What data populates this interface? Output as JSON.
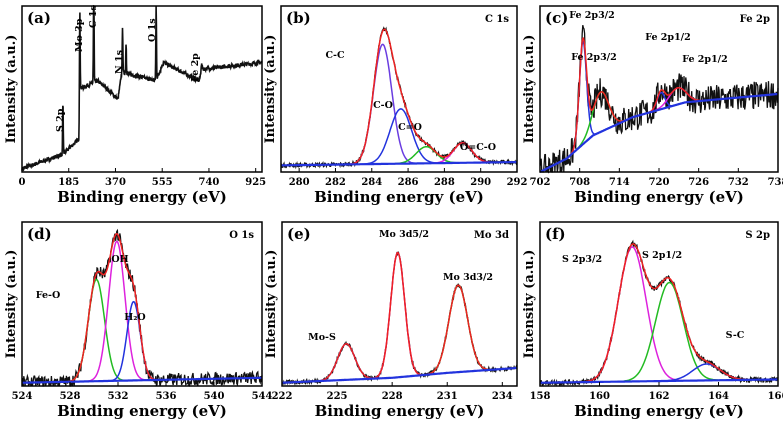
{
  "chart_data": [
    {
      "type": "line",
      "panel": "(a)",
      "element": "",
      "xlabel": "Binding energy (eV)",
      "ylabel": "Intensity (a.u.)",
      "xlim": [
        0,
        950
      ],
      "ticks": [
        0,
        185,
        370,
        555,
        740,
        925
      ],
      "noise": 0.012,
      "background": [
        [
          0,
          0.02
        ],
        [
          150,
          0.1
        ],
        [
          158,
          0.1
        ],
        [
          225,
          0.2
        ],
        [
          228,
          0.5
        ],
        [
          300,
          0.55
        ],
        [
          380,
          0.44
        ],
        [
          395,
          0.6
        ],
        [
          530,
          0.55
        ],
        [
          560,
          0.66
        ],
        [
          700,
          0.55
        ],
        [
          715,
          0.62
        ],
        [
          950,
          0.66
        ]
      ],
      "peaks": [
        {
          "label": "S 2p",
          "center": 162,
          "height": 0.32,
          "width": 3,
          "color": "#000"
        },
        {
          "label": "Mo 3p",
          "center": 229,
          "height": 0.45,
          "width": 3,
          "color": "#000"
        },
        {
          "label": "C 1s",
          "center": 284,
          "height": 0.62,
          "width": 3,
          "color": "#000"
        },
        {
          "label": "N 1s",
          "center": 398,
          "height": 0.28,
          "width": 3,
          "color": "#000"
        },
        {
          "label": "",
          "center": 412,
          "height": 0.18,
          "width": 3,
          "color": "#000"
        },
        {
          "label": "O 1s",
          "center": 531,
          "height": 0.45,
          "width": 3,
          "color": "#000"
        },
        {
          "label": "Fe 2p",
          "center": 711,
          "height": 0.06,
          "width": 4,
          "color": "#000"
        }
      ],
      "components": false
    },
    {
      "type": "line",
      "panel": "(b)",
      "element": "C 1s",
      "xlabel": "Binding energy (eV)",
      "ylabel": "Intensity (a.u.)",
      "xlim": [
        279,
        292
      ],
      "ticks": [
        280,
        282,
        284,
        286,
        288,
        290,
        292
      ],
      "noise": 0.012,
      "background": [
        [
          279,
          0.04
        ],
        [
          292,
          0.06
        ]
      ],
      "peaks": [
        {
          "label": "C-C",
          "center": 284.6,
          "height": 0.72,
          "width": 1.2,
          "color": "#6a3de0"
        },
        {
          "label": "C-O",
          "center": 285.6,
          "height": 0.33,
          "width": 1.4,
          "color": "#2233dd"
        },
        {
          "label": "C=O",
          "center": 287.0,
          "height": 0.1,
          "width": 1.3,
          "color": "#22bb22"
        },
        {
          "label": "O=C-O",
          "center": 289.0,
          "height": 0.12,
          "width": 1.2,
          "color": "#dd22dd"
        }
      ],
      "components": true
    },
    {
      "type": "line",
      "panel": "(c)",
      "element": "Fe 2p",
      "xlabel": "Binding energy (eV)",
      "ylabel": "Intensity (a.u.)",
      "xlim": [
        702,
        738
      ],
      "ticks": [
        702,
        708,
        714,
        720,
        726,
        732,
        738
      ],
      "noise": 0.09,
      "background": [
        [
          702,
          0.0
        ],
        [
          706,
          0.08
        ],
        [
          710,
          0.22
        ],
        [
          716,
          0.33
        ],
        [
          724,
          0.42
        ],
        [
          738,
          0.47
        ]
      ],
      "peaks": [
        {
          "label": "Fe 2p3/2",
          "center": 708.5,
          "height": 0.62,
          "width": 1.3,
          "color": "#2233dd"
        },
        {
          "label": "Fe 2p3/2",
          "center": 711.2,
          "height": 0.24,
          "width": 2.8,
          "color": "#22bb22"
        },
        {
          "label": "Fe 2p1/2",
          "center": 720.3,
          "height": 0.1,
          "width": 1.4,
          "color": "#2233dd"
        },
        {
          "label": "Fe 2p1/2",
          "center": 722.8,
          "height": 0.1,
          "width": 3,
          "color": "#dd22dd"
        }
      ],
      "components": true
    },
    {
      "type": "line",
      "panel": "(d)",
      "element": "O 1s",
      "xlabel": "Binding energy (eV)",
      "ylabel": "Intensity (a.u.)",
      "xlim": [
        524,
        544
      ],
      "ticks": [
        524,
        528,
        532,
        536,
        540,
        544
      ],
      "noise": 0.04,
      "background": [
        [
          524,
          0.02
        ],
        [
          544,
          0.05
        ]
      ],
      "peaks": [
        {
          "label": "Fe-O",
          "center": 530.2,
          "height": 0.62,
          "width": 1.6,
          "color": "#22bb22"
        },
        {
          "label": "OH",
          "center": 531.9,
          "height": 0.85,
          "width": 1.6,
          "color": "#dd22dd"
        },
        {
          "label": "H₂O",
          "center": 533.3,
          "height": 0.48,
          "width": 1.3,
          "color": "#2233dd"
        }
      ],
      "components": true
    },
    {
      "type": "line",
      "panel": "(e)",
      "element": "Mo 3d",
      "xlabel": "Binding energy (eV)",
      "ylabel": "Intensity (a.u.)",
      "xlim": [
        222,
        234.8
      ],
      "ticks": [
        222,
        225,
        228,
        231,
        234
      ],
      "noise": 0.012,
      "background": [
        [
          222,
          0.02
        ],
        [
          228,
          0.05
        ],
        [
          231,
          0.08
        ],
        [
          234.8,
          0.11
        ]
      ],
      "peaks": [
        {
          "label": "Mo-S",
          "center": 225.5,
          "height": 0.22,
          "width": 1.1,
          "color": "#2233dd"
        },
        {
          "label": "Mo 3d5/2",
          "center": 228.3,
          "height": 0.76,
          "width": 0.9,
          "color": "#dd22dd"
        },
        {
          "label": "Mo 3d3/2",
          "center": 231.6,
          "height": 0.53,
          "width": 1.2,
          "color": "#22bb22"
        }
      ],
      "components": true
    },
    {
      "type": "line",
      "panel": "(f)",
      "element": "S 2p",
      "xlabel": "Binding energy (eV)",
      "ylabel": "Intensity (a.u.)",
      "xlim": [
        158,
        166
      ],
      "ticks": [
        158,
        160,
        162,
        164,
        166
      ],
      "noise": 0.015,
      "background": [
        [
          158,
          0.02
        ],
        [
          166,
          0.04
        ]
      ],
      "peaks": [
        {
          "label": "S 2p3/2",
          "center": 161.1,
          "height": 0.82,
          "width": 1.1,
          "color": "#dd22dd"
        },
        {
          "label": "S 2p1/2",
          "center": 162.35,
          "height": 0.6,
          "width": 1.1,
          "color": "#22bb22"
        },
        {
          "label": "S-C",
          "center": 163.6,
          "height": 0.1,
          "width": 1.1,
          "color": "#2233dd"
        }
      ],
      "components": true
    }
  ],
  "colors": {
    "envelope": "#ee2222",
    "background": "#2233dd",
    "raw": "#111111"
  }
}
